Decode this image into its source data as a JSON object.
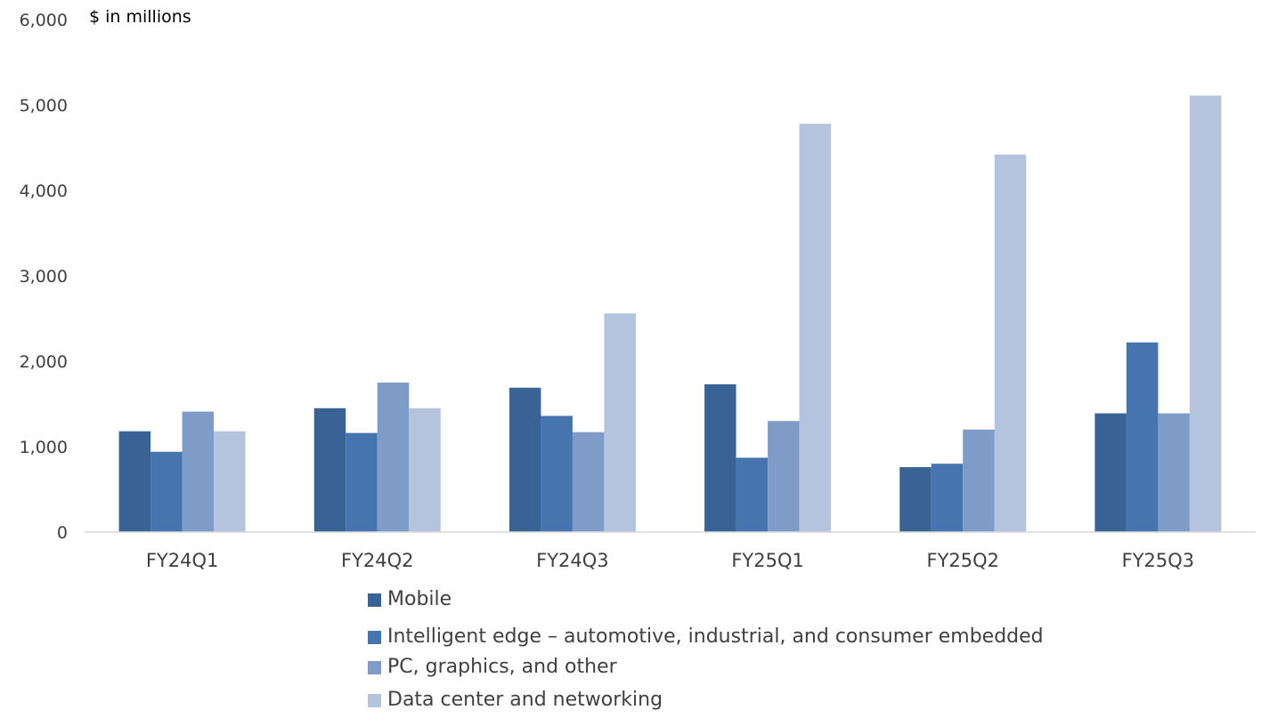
{
  "chart_data": {
    "type": "bar",
    "title": "",
    "unit_label": "$ in millions",
    "xlabel": "",
    "ylabel": "$ in millions",
    "ylim": [
      0,
      6000
    ],
    "y_ticks": [
      "0",
      "1,000",
      "2,000",
      "3,000",
      "4,000",
      "5,000",
      "6,000"
    ],
    "y_tick_values": [
      0,
      1000,
      2000,
      3000,
      4000,
      5000,
      6000
    ],
    "grid": false,
    "legend_position": "bottom",
    "categories": [
      "FY24Q1",
      "FY24Q2",
      "FY24Q3",
      "FY25Q1",
      "FY25Q2",
      "FY25Q3"
    ],
    "series": [
      {
        "name": "Mobile",
        "color": "#3A6395",
        "values": [
          1180,
          1450,
          1690,
          1730,
          760,
          1390
        ]
      },
      {
        "name": "Intelligent edge – automotive, industrial, and consumer embedded",
        "color": "#4674AE",
        "values": [
          940,
          1160,
          1360,
          870,
          800,
          2220
        ]
      },
      {
        "name": "PC, graphics, and other",
        "color": "#7F9CC8",
        "values": [
          1410,
          1750,
          1170,
          1300,
          1200,
          1390
        ]
      },
      {
        "name": "Data center and networking",
        "color": "#B4C4DF",
        "values": [
          1180,
          1450,
          2560,
          4780,
          4420,
          5110
        ]
      }
    ]
  }
}
